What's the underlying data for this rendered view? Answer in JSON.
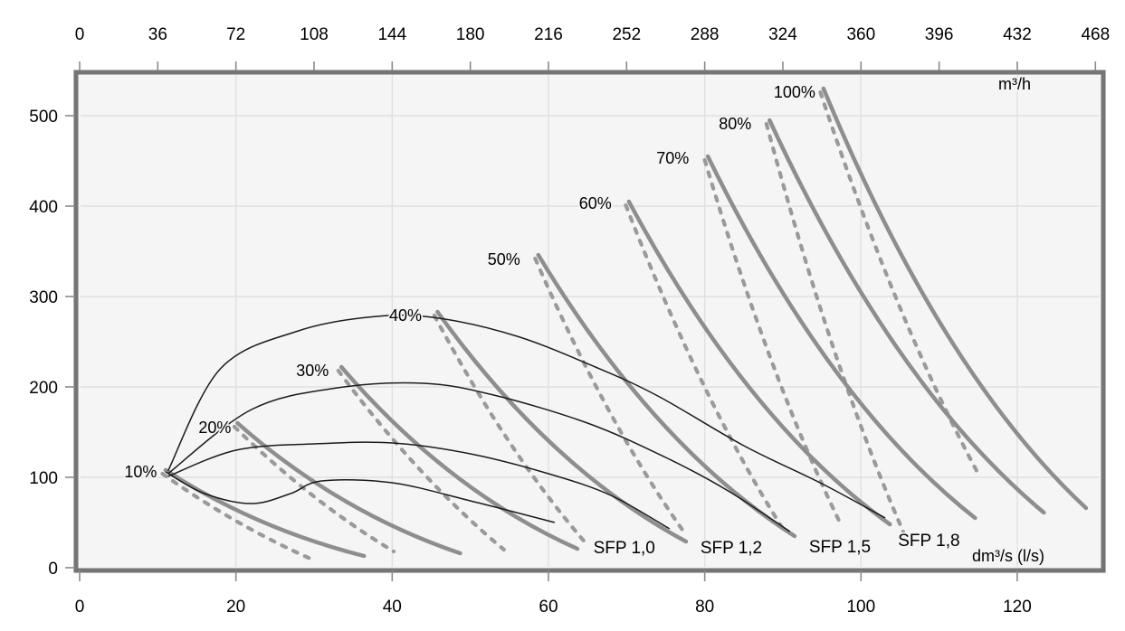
{
  "chart_data": {
    "type": "line",
    "title": "",
    "axes": {
      "top_x": {
        "unit": "m³/h",
        "ticks": [
          0,
          36,
          72,
          108,
          144,
          180,
          216,
          252,
          288,
          324,
          360,
          396,
          432,
          468
        ]
      },
      "bottom_x": {
        "unit": "dm³/s (l/s)",
        "ticks": [
          0,
          20,
          40,
          60,
          80,
          100,
          120
        ]
      },
      "left_y": {
        "ticks": [
          0,
          100,
          200,
          300,
          400,
          500
        ]
      }
    },
    "layout": {
      "grid": "on",
      "x_range_lps": [
        0,
        130.7
      ],
      "y_range": [
        0,
        546
      ],
      "m3h_per_lps": 3.6
    },
    "fan_speed_curves": [
      {
        "label": "10%",
        "label_at": [
          7.8,
          106
        ],
        "start": [
          11.0,
          108
        ],
        "solid_end": [
          36.4,
          13
        ],
        "dashed_end": [
          29.8,
          9
        ]
      },
      {
        "label": "20%",
        "label_at": [
          17.3,
          155
        ],
        "start": [
          20.2,
          160
        ],
        "solid_end": [
          48.7,
          16
        ],
        "dashed_end": [
          40.2,
          18
        ]
      },
      {
        "label": "30%",
        "label_at": [
          29.8,
          218
        ],
        "start": [
          33.5,
          222
        ],
        "solid_end": [
          63.7,
          21
        ],
        "dashed_end": [
          54.3,
          20
        ]
      },
      {
        "label": "40%",
        "label_at": [
          41.7,
          279
        ],
        "start": [
          45.8,
          283
        ],
        "solid_end": [
          77.6,
          29
        ],
        "dashed_end": [
          64.6,
          29
        ]
      },
      {
        "label": "50%",
        "label_at": [
          54.3,
          341
        ],
        "start": [
          58.7,
          346
        ],
        "solid_end": [
          91.5,
          35
        ],
        "dashed_end": [
          77.3,
          40
        ]
      },
      {
        "label": "60%",
        "label_at": [
          66.0,
          403
        ],
        "start": [
          70.3,
          405
        ],
        "solid_end": [
          103.7,
          48
        ],
        "dashed_end": [
          90.0,
          43
        ]
      },
      {
        "label": "70%",
        "label_at": [
          75.9,
          453
        ],
        "start": [
          80.4,
          455
        ],
        "solid_end": [
          114.6,
          55
        ],
        "dashed_end": [
          97.3,
          50
        ]
      },
      {
        "label": "80%",
        "label_at": [
          83.9,
          491
        ],
        "start": [
          88.3,
          495
        ],
        "solid_end": [
          123.4,
          61
        ],
        "dashed_end": [
          105.4,
          40
        ]
      },
      {
        "label": "100%",
        "label_at": [
          91.5,
          526
        ],
        "start": [
          95.2,
          530
        ],
        "solid_end": [
          128.8,
          66
        ],
        "dashed_end": [
          115.0,
          104
        ]
      }
    ],
    "sfp_curves": [
      {
        "label": "SFP 1,0",
        "label_at": [
          69.7,
          22
        ],
        "points": [
          [
            11.0,
            106
          ],
          [
            16,
            82
          ],
          [
            22,
            71
          ],
          [
            27,
            82
          ],
          [
            31,
            96
          ],
          [
            40,
            94
          ],
          [
            50,
            74
          ],
          [
            60.8,
            50
          ]
        ]
      },
      {
        "label": "SFP 1,2",
        "label_at": [
          83.4,
          22
        ],
        "points": [
          [
            11.3,
            101
          ],
          [
            20,
            130
          ],
          [
            30,
            137
          ],
          [
            40,
            138
          ],
          [
            50,
            126
          ],
          [
            60,
            104
          ],
          [
            68,
            80
          ],
          [
            75.5,
            43
          ]
        ]
      },
      {
        "label": "SFP 1,5",
        "label_at": [
          97.3,
          23
        ],
        "points": [
          [
            11.3,
            104
          ],
          [
            22,
            175
          ],
          [
            33,
            199
          ],
          [
            44,
            204
          ],
          [
            53,
            191
          ],
          [
            65,
            160
          ],
          [
            75,
            122
          ],
          [
            83,
            85
          ],
          [
            90.9,
            40
          ]
        ]
      },
      {
        "label": "SFP 1,8",
        "label_at": [
          108.7,
          30
        ],
        "points": [
          [
            11.3,
            107
          ],
          [
            18,
            220
          ],
          [
            28,
            262
          ],
          [
            38,
            278
          ],
          [
            46,
            276
          ],
          [
            56,
            256
          ],
          [
            66,
            222
          ],
          [
            74,
            190
          ],
          [
            85,
            135
          ],
          [
            95,
            93
          ],
          [
            103.1,
            55
          ]
        ]
      }
    ],
    "colors": {
      "plot_bg": "#f5f5f5",
      "page_bg": "#ffffff",
      "border": "#757575",
      "border_outer_edge": "#d0d0d0",
      "grid": "#e0e0e0",
      "tick": "#8a8a8a",
      "fan_solid": "#8e8e8e",
      "fan_dashed": "#9a9a9a",
      "sfp_line": "#1b1b1b",
      "text": "#000000"
    }
  }
}
